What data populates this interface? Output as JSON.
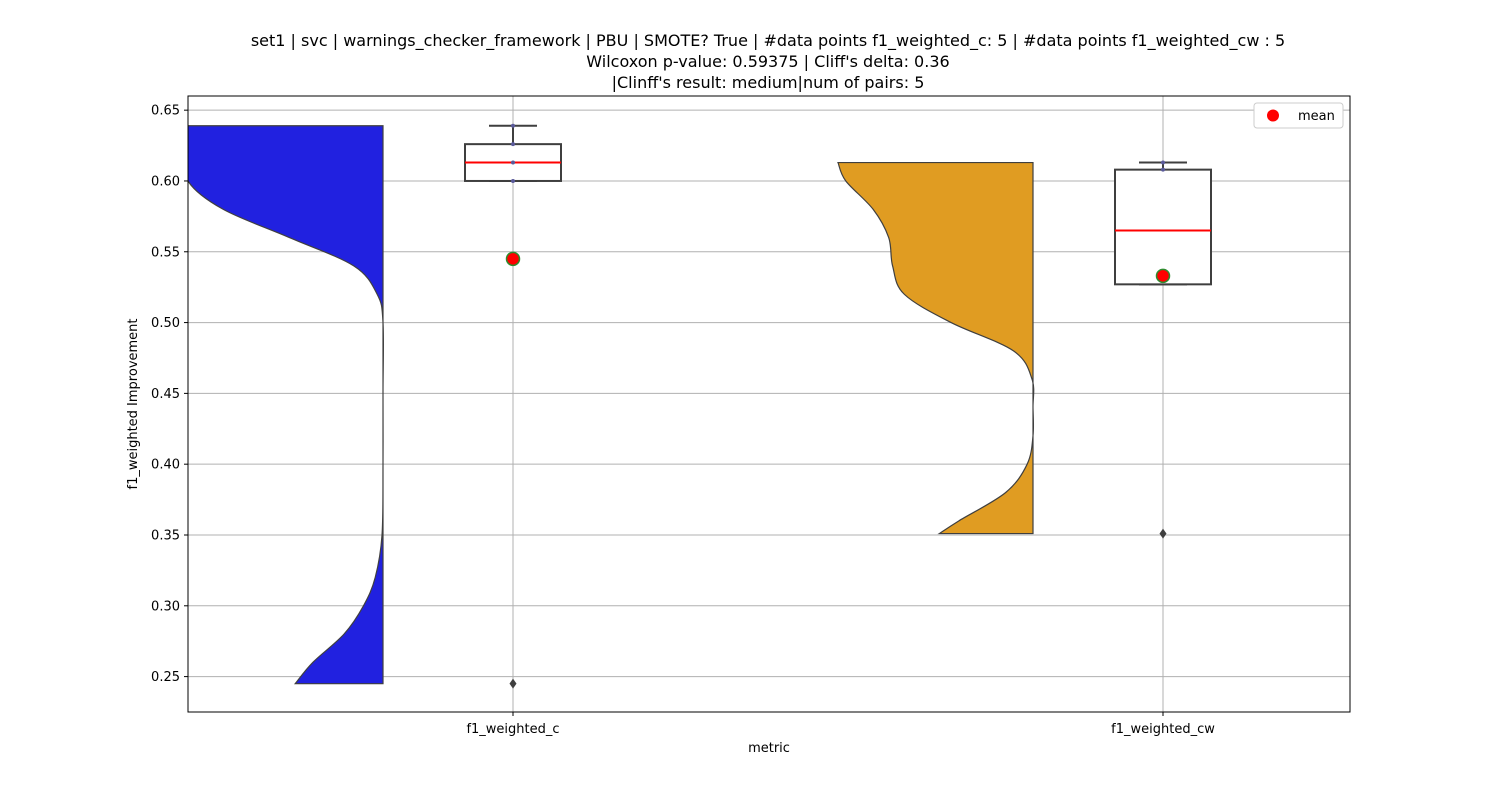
{
  "chart_data": {
    "type": "violin",
    "title": [
      "set1 | svc | warnings_checker_framework | PBU | SMOTE? True | #data points f1_weighted_c: 5 | #data points f1_weighted_cw : 5",
      "Wilcoxon p-value: 0.59375 | Cliff's delta: 0.36",
      "|Clinff's result: medium|num of pairs: 5"
    ],
    "xlabel": "metric",
    "ylabel": "f1_weighted Improvement",
    "ylim": [
      0.225,
      0.66
    ],
    "yticks": [
      0.25,
      0.3,
      0.35,
      0.4,
      0.45,
      0.5,
      0.55,
      0.6,
      0.65
    ],
    "ytick_labels": [
      "0.25",
      "0.30",
      "0.35",
      "0.40",
      "0.45",
      "0.50",
      "0.55",
      "0.60",
      "0.65"
    ],
    "categories": [
      "f1_weighted_c",
      "f1_weighted_cw"
    ],
    "grid": true,
    "legend": {
      "position": "top-right",
      "entries": [
        {
          "label": "mean",
          "color": "#ff0000"
        }
      ]
    },
    "series": [
      {
        "category": "f1_weighted_c",
        "violin_color": "#2121e0",
        "violin_range": [
          0.245,
          0.639
        ],
        "density": [
          [
            0.245,
            0.45
          ],
          [
            0.26,
            0.36
          ],
          [
            0.28,
            0.2
          ],
          [
            0.3,
            0.1
          ],
          [
            0.32,
            0.04
          ],
          [
            0.35,
            0.005
          ],
          [
            0.4,
            0.0
          ],
          [
            0.45,
            0.0
          ],
          [
            0.5,
            0.0
          ],
          [
            0.52,
            0.03
          ],
          [
            0.54,
            0.15
          ],
          [
            0.56,
            0.48
          ],
          [
            0.58,
            0.82
          ],
          [
            0.6,
            1.0
          ],
          [
            0.62,
            1.0
          ],
          [
            0.639,
            1.0
          ]
        ],
        "box": {
          "q1": 0.6,
          "median": 0.613,
          "q3": 0.626,
          "whisker_low": 0.6,
          "whisker_high": 0.639
        },
        "points": [
          0.6,
          0.613,
          0.626,
          0.639
        ],
        "outliers": [
          0.245
        ],
        "mean": 0.545
      },
      {
        "category": "f1_weighted_cw",
        "violin_color": "#e09c22",
        "violin_range": [
          0.351,
          0.613
        ],
        "density": [
          [
            0.351,
            0.48
          ],
          [
            0.36,
            0.38
          ],
          [
            0.38,
            0.14
          ],
          [
            0.4,
            0.03
          ],
          [
            0.42,
            0.0
          ],
          [
            0.44,
            0.0
          ],
          [
            0.46,
            0.005
          ],
          [
            0.48,
            0.1
          ],
          [
            0.5,
            0.42
          ],
          [
            0.52,
            0.66
          ],
          [
            0.54,
            0.72
          ],
          [
            0.56,
            0.74
          ],
          [
            0.58,
            0.82
          ],
          [
            0.6,
            0.96
          ],
          [
            0.613,
            1.0
          ]
        ],
        "box": {
          "q1": 0.527,
          "median": 0.565,
          "q3": 0.608,
          "whisker_low": 0.527,
          "whisker_high": 0.613
        },
        "points": [
          0.608,
          0.613
        ],
        "outliers": [
          0.351
        ],
        "mean": 0.533
      }
    ]
  }
}
